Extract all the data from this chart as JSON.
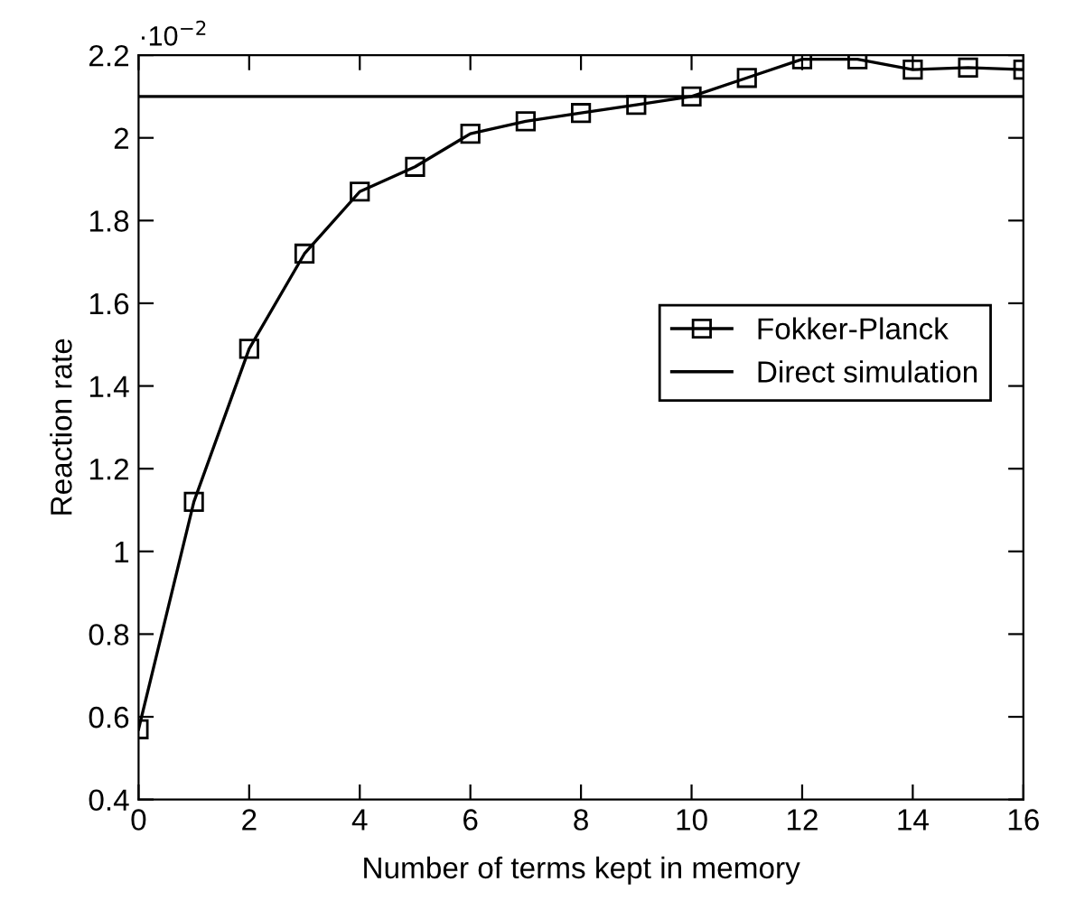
{
  "chart_data": {
    "type": "line",
    "xlabel": "Number of terms kept in memory",
    "ylabel": "Reaction rate",
    "x": [
      0,
      1,
      2,
      3,
      4,
      5,
      6,
      7,
      8,
      9,
      10,
      11,
      12,
      13,
      14,
      15,
      16
    ],
    "series": [
      {
        "name": "Fokker-Planck",
        "color": "#000000",
        "marker": "square",
        "values": [
          0.57,
          1.12,
          1.49,
          1.72,
          1.87,
          1.93,
          2.01,
          2.04,
          2.06,
          2.08,
          2.1,
          2.145,
          2.19,
          2.19,
          2.165,
          2.17,
          2.165
        ]
      }
    ],
    "ref_lines": [
      {
        "axis": "y",
        "value": 2.1,
        "label": "Direct simulation",
        "color": "#000000",
        "line_style": "solid"
      }
    ],
    "annotations": [
      "·10$^{−2}$"
    ],
    "xlim": [
      0,
      16
    ],
    "xticks": [
      0,
      2,
      4,
      6,
      8,
      10,
      12,
      14,
      16
    ],
    "ylim": [
      0.4,
      2.2
    ],
    "yticks": [
      0.4,
      0.6,
      0.8,
      1,
      1.2,
      1.4,
      1.6,
      1.8,
      2,
      2.2
    ],
    "grid": false,
    "legend": "right"
  }
}
